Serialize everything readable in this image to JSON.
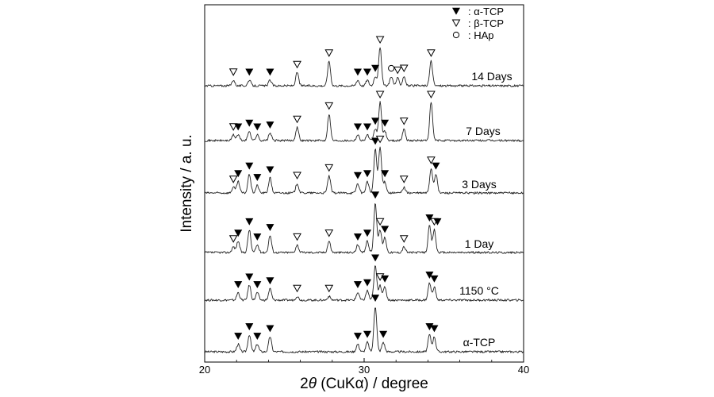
{
  "chart_data": {
    "type": "line",
    "title": "",
    "xlabel_prefix": "2",
    "xlabel_theta": "θ",
    "xlabel_rest": " (CuKα) / degree",
    "ylabel": "Intensity / a. u.",
    "xlim": [
      20,
      40
    ],
    "xticks": [
      20,
      30,
      40
    ],
    "grid": false,
    "legend_position": "top-right",
    "legend": [
      {
        "marker": "alpha",
        "label": ": α-TCP"
      },
      {
        "marker": "beta",
        "label": ": β-TCP"
      },
      {
        "marker": "hap",
        "label": ": HAp"
      }
    ],
    "series": [
      {
        "name": "α-TCP",
        "peaks": [
          [
            22.1,
            4
          ],
          [
            22.8,
            9
          ],
          [
            23.3,
            4
          ],
          [
            24.1,
            8
          ],
          [
            29.6,
            4
          ],
          [
            30.2,
            5
          ],
          [
            30.7,
            24
          ],
          [
            31.2,
            5
          ],
          [
            34.1,
            9
          ],
          [
            34.4,
            8
          ]
        ],
        "markers": [
          {
            "x": 22.1,
            "type": "alpha"
          },
          {
            "x": 22.8,
            "type": "alpha"
          },
          {
            "x": 23.3,
            "type": "alpha"
          },
          {
            "x": 24.1,
            "type": "alpha"
          },
          {
            "x": 29.6,
            "type": "alpha"
          },
          {
            "x": 30.2,
            "type": "alpha"
          },
          {
            "x": 30.7,
            "type": "alpha"
          },
          {
            "x": 31.2,
            "type": "alpha"
          },
          {
            "x": 34.1,
            "type": "alpha"
          },
          {
            "x": 34.4,
            "type": "alpha"
          }
        ]
      },
      {
        "name": "1150 °C",
        "peaks": [
          [
            22.1,
            4
          ],
          [
            22.8,
            8
          ],
          [
            23.3,
            4
          ],
          [
            24.1,
            6
          ],
          [
            25.8,
            2
          ],
          [
            27.8,
            2
          ],
          [
            29.6,
            4
          ],
          [
            30.2,
            5
          ],
          [
            30.7,
            18
          ],
          [
            31.0,
            8
          ],
          [
            31.3,
            7
          ],
          [
            34.1,
            9
          ],
          [
            34.4,
            7
          ]
        ],
        "markers": [
          {
            "x": 22.1,
            "type": "alpha"
          },
          {
            "x": 22.8,
            "type": "alpha"
          },
          {
            "x": 23.3,
            "type": "alpha"
          },
          {
            "x": 24.1,
            "type": "alpha"
          },
          {
            "x": 25.8,
            "type": "beta"
          },
          {
            "x": 27.8,
            "type": "beta"
          },
          {
            "x": 29.6,
            "type": "alpha"
          },
          {
            "x": 30.2,
            "type": "alpha"
          },
          {
            "x": 30.7,
            "type": "alpha"
          },
          {
            "x": 31.0,
            "type": "beta"
          },
          {
            "x": 31.3,
            "type": "alpha"
          },
          {
            "x": 34.1,
            "type": "alpha"
          },
          {
            "x": 34.4,
            "type": "alpha"
          }
        ]
      },
      {
        "name": "1 Day",
        "peaks": [
          [
            21.8,
            3
          ],
          [
            22.1,
            6
          ],
          [
            22.8,
            12
          ],
          [
            23.3,
            4
          ],
          [
            24.1,
            9
          ],
          [
            25.8,
            4
          ],
          [
            27.8,
            6
          ],
          [
            29.6,
            4
          ],
          [
            30.2,
            6
          ],
          [
            30.7,
            26
          ],
          [
            31.0,
            12
          ],
          [
            31.3,
            8
          ],
          [
            32.5,
            3
          ],
          [
            34.1,
            14
          ],
          [
            34.4,
            12
          ]
        ],
        "markers": [
          {
            "x": 21.8,
            "type": "beta"
          },
          {
            "x": 22.1,
            "type": "alpha"
          },
          {
            "x": 22.8,
            "type": "alpha"
          },
          {
            "x": 23.3,
            "type": "alpha"
          },
          {
            "x": 24.1,
            "type": "alpha"
          },
          {
            "x": 25.8,
            "type": "beta"
          },
          {
            "x": 27.8,
            "type": "beta"
          },
          {
            "x": 29.6,
            "type": "alpha"
          },
          {
            "x": 30.2,
            "type": "alpha"
          },
          {
            "x": 30.7,
            "type": "alpha"
          },
          {
            "x": 31.0,
            "type": "beta"
          },
          {
            "x": 31.3,
            "type": "alpha"
          },
          {
            "x": 32.5,
            "type": "beta"
          },
          {
            "x": 34.1,
            "type": "alpha"
          },
          {
            "x": 34.4,
            "type": "beta"
          },
          {
            "x": 34.6,
            "type": "alpha"
          }
        ]
      },
      {
        "name": "3 Days",
        "peaks": [
          [
            21.8,
            3
          ],
          [
            22.1,
            6
          ],
          [
            22.8,
            10
          ],
          [
            23.3,
            4
          ],
          [
            24.1,
            8
          ],
          [
            25.8,
            5
          ],
          [
            27.8,
            9
          ],
          [
            29.6,
            5
          ],
          [
            30.2,
            6
          ],
          [
            30.7,
            23
          ],
          [
            31.0,
            24
          ],
          [
            31.3,
            6
          ],
          [
            32.5,
            3
          ],
          [
            34.2,
            13
          ],
          [
            34.5,
            10
          ]
        ],
        "markers": [
          {
            "x": 21.8,
            "type": "beta"
          },
          {
            "x": 22.1,
            "type": "alpha"
          },
          {
            "x": 22.8,
            "type": "alpha"
          },
          {
            "x": 23.3,
            "type": "alpha"
          },
          {
            "x": 24.1,
            "type": "alpha"
          },
          {
            "x": 25.8,
            "type": "beta"
          },
          {
            "x": 27.8,
            "type": "beta"
          },
          {
            "x": 29.6,
            "type": "alpha"
          },
          {
            "x": 30.2,
            "type": "alpha"
          },
          {
            "x": 30.7,
            "type": "alpha"
          },
          {
            "x": 31.0,
            "type": "beta"
          },
          {
            "x": 31.3,
            "type": "alpha"
          },
          {
            "x": 32.5,
            "type": "beta"
          },
          {
            "x": 34.2,
            "type": "beta"
          },
          {
            "x": 34.5,
            "type": "alpha"
          }
        ]
      },
      {
        "name": "7 Days",
        "peaks": [
          [
            21.8,
            3
          ],
          [
            22.1,
            3
          ],
          [
            22.8,
            5
          ],
          [
            23.3,
            3
          ],
          [
            24.1,
            4
          ],
          [
            25.8,
            7
          ],
          [
            27.8,
            14
          ],
          [
            29.6,
            3
          ],
          [
            30.2,
            3
          ],
          [
            30.7,
            6
          ],
          [
            31.0,
            20
          ],
          [
            31.3,
            5
          ],
          [
            32.5,
            6
          ],
          [
            34.2,
            20
          ]
        ],
        "markers": [
          {
            "x": 21.8,
            "type": "beta"
          },
          {
            "x": 22.1,
            "type": "alpha"
          },
          {
            "x": 22.8,
            "type": "alpha"
          },
          {
            "x": 23.3,
            "type": "alpha"
          },
          {
            "x": 24.1,
            "type": "alpha"
          },
          {
            "x": 25.8,
            "type": "beta"
          },
          {
            "x": 27.8,
            "type": "beta"
          },
          {
            "x": 29.6,
            "type": "alpha"
          },
          {
            "x": 30.2,
            "type": "alpha"
          },
          {
            "x": 30.7,
            "type": "alpha"
          },
          {
            "x": 31.0,
            "type": "beta"
          },
          {
            "x": 31.3,
            "type": "alpha"
          },
          {
            "x": 32.5,
            "type": "beta"
          },
          {
            "x": 34.2,
            "type": "beta"
          }
        ]
      },
      {
        "name": "14 Days",
        "peaks": [
          [
            21.8,
            3
          ],
          [
            22.8,
            3
          ],
          [
            24.1,
            3
          ],
          [
            25.8,
            7
          ],
          [
            27.8,
            13
          ],
          [
            29.6,
            3
          ],
          [
            30.2,
            3
          ],
          [
            30.7,
            5
          ],
          [
            31.0,
            20
          ],
          [
            31.7,
            5
          ],
          [
            32.1,
            4
          ],
          [
            32.5,
            5
          ],
          [
            34.2,
            13
          ]
        ],
        "markers": [
          {
            "x": 21.8,
            "type": "beta"
          },
          {
            "x": 22.8,
            "type": "alpha"
          },
          {
            "x": 24.1,
            "type": "alpha"
          },
          {
            "x": 25.8,
            "type": "beta"
          },
          {
            "x": 27.8,
            "type": "beta"
          },
          {
            "x": 29.6,
            "type": "alpha"
          },
          {
            "x": 30.2,
            "type": "alpha"
          },
          {
            "x": 30.7,
            "type": "alpha"
          },
          {
            "x": 31.0,
            "type": "beta"
          },
          {
            "x": 31.7,
            "type": "hap"
          },
          {
            "x": 32.1,
            "type": "beta"
          },
          {
            "x": 32.5,
            "type": "beta"
          },
          {
            "x": 34.2,
            "type": "beta"
          }
        ]
      }
    ]
  }
}
